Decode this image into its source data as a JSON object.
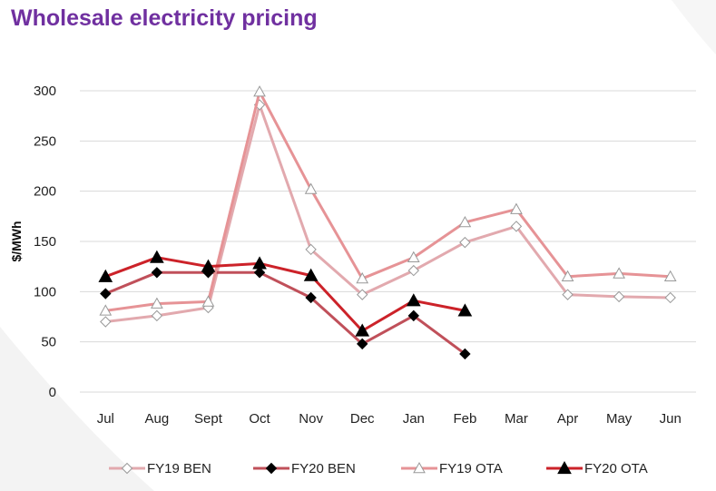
{
  "title": "Wholesale electricity pricing",
  "chart_data": {
    "type": "line",
    "title": "Wholesale electricity pricing",
    "xlabel": "",
    "ylabel": "$/MWh",
    "ylim": [
      0,
      300
    ],
    "yticks": [
      "0",
      "50",
      "100",
      "150",
      "200",
      "250",
      "300"
    ],
    "grid": true,
    "legend_position": "bottom",
    "categories": [
      "Jul",
      "Aug",
      "Sept",
      "Oct",
      "Nov",
      "Dec",
      "Jan",
      "Feb",
      "Mar",
      "Apr",
      "May",
      "Jun"
    ],
    "series": [
      {
        "name": "FY19 BEN",
        "color": "#E2A9AE",
        "marker": "diamond-open",
        "values": [
          70,
          76,
          84,
          286,
          142,
          97,
          121,
          149,
          165,
          97,
          95,
          94
        ]
      },
      {
        "name": "FY20 BEN",
        "color": "#C0505A",
        "marker": "diamond-filled",
        "values": [
          98,
          119,
          119,
          119,
          94,
          48,
          76,
          38,
          null,
          null,
          null,
          null
        ]
      },
      {
        "name": "FY19 OTA",
        "color": "#E69396",
        "marker": "triangle-open",
        "values": [
          81,
          88,
          90,
          299,
          202,
          113,
          134,
          169,
          182,
          115,
          118,
          115
        ]
      },
      {
        "name": "FY20 OTA",
        "color": "#CC2229",
        "marker": "triangle-filled",
        "values": [
          115,
          134,
          125,
          128,
          116,
          61,
          91,
          81,
          null,
          null,
          null,
          null
        ]
      }
    ]
  }
}
